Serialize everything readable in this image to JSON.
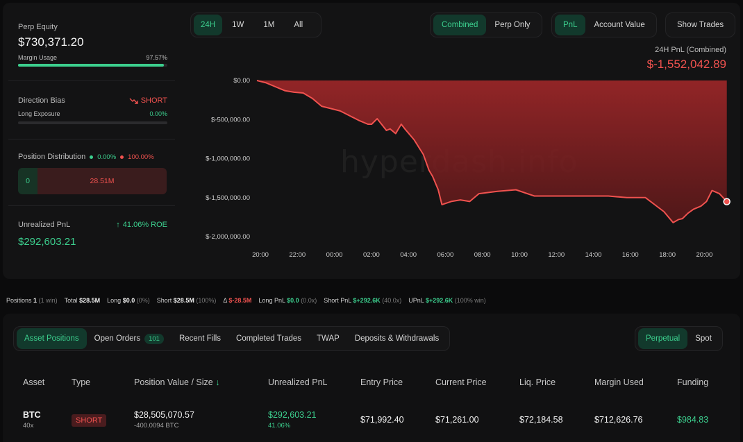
{
  "left": {
    "perp_equity_label": "Perp Equity",
    "perp_equity_value": "$730,371.20",
    "margin_usage_label": "Margin Usage",
    "margin_usage_value": "97.57%",
    "margin_usage_fraction": 0.9757,
    "direction_bias_label": "Direction Bias",
    "direction_bias_value": "SHORT",
    "long_exposure_label": "Long Exposure",
    "long_exposure_value": "0.00%",
    "long_exposure_fraction": 0.0,
    "position_distribution_label": "Position Distribution",
    "dist_long_pct": "0.00%",
    "dist_short_pct": "100.00%",
    "dist_long_value": "0",
    "dist_short_value": "28.51M",
    "unrealized_pnl_label": "Unrealized PnL",
    "roe_value": "41.06% ROE",
    "unrealized_pnl_value": "$292,603.21"
  },
  "timeframes": [
    "24H",
    "1W",
    "1M",
    "All"
  ],
  "timeframe_active": "24H",
  "modes": [
    "Combined",
    "Perp Only"
  ],
  "mode_active": "Combined",
  "metrics": [
    "PnL",
    "Account Value"
  ],
  "metric_active": "PnL",
  "show_trades_label": "Show Trades",
  "pnl_header": {
    "label": "24H PnL (Combined)",
    "value": "$-1,552,042.89"
  },
  "watermark": "hyperdash.info",
  "chart_data": {
    "type": "area",
    "title": "24H PnL (Combined)",
    "xlabel": "",
    "ylabel": "",
    "x_ticks": [
      "20:00",
      "22:00",
      "00:00",
      "02:00",
      "04:00",
      "06:00",
      "08:00",
      "10:00",
      "12:00",
      "14:00",
      "16:00",
      "18:00",
      "20:00"
    ],
    "y_ticks": [
      "$0.00",
      "$-500,000.00",
      "$-1,000,000.00",
      "$-1,500,000.00",
      "$-2,000,000.00"
    ],
    "ylim": [
      -2000000,
      0
    ],
    "xlim_hours": [
      0,
      25.6
    ],
    "series": [
      {
        "color": "#f0524f",
        "x": [
          0,
          0.5,
          1,
          1.5,
          2,
          2.5,
          3,
          3.5,
          4,
          4.5,
          5,
          5.5,
          6,
          6.2,
          6.5,
          6.8,
          7,
          7.2,
          7.5,
          7.8,
          8,
          8.5,
          9,
          9.3,
          9.5,
          9.8,
          10,
          10.5,
          11,
          11.5,
          12,
          13,
          14,
          15,
          16,
          17,
          18,
          19,
          20,
          21,
          22,
          22.5,
          22.8,
          23,
          23.3,
          23.6,
          24,
          24.3,
          24.6,
          25,
          25.4
        ],
        "y": [
          0,
          -30000,
          -80000,
          -130000,
          -150000,
          -160000,
          -230000,
          -330000,
          -360000,
          -390000,
          -450000,
          -510000,
          -560000,
          -560000,
          -490000,
          -580000,
          -640000,
          -620000,
          -680000,
          -560000,
          -620000,
          -760000,
          -950000,
          -1150000,
          -1230000,
          -1400000,
          -1590000,
          -1550000,
          -1530000,
          -1550000,
          -1450000,
          -1420000,
          -1400000,
          -1480000,
          -1480000,
          -1480000,
          -1480000,
          -1480000,
          -1500000,
          -1500000,
          -1680000,
          -1820000,
          -1780000,
          -1770000,
          -1700000,
          -1650000,
          -1610000,
          -1550000,
          -1410000,
          -1450000,
          -1552042.89
        ]
      }
    ]
  },
  "stats": {
    "positions_label": "Positions",
    "positions_value": "1",
    "positions_sub": "(1 win)",
    "total_label": "Total",
    "total_value": "$28.5M",
    "long_label": "Long",
    "long_value": "$0.0",
    "long_sub": "(0%)",
    "short_label": "Short",
    "short_value": "$28.5M",
    "short_sub": "(100%)",
    "delta_label": "Δ",
    "delta_value": "$-28.5M",
    "long_pnl_label": "Long PnL",
    "long_pnl_value": "$0.0",
    "long_pnl_sub": "(0.0x)",
    "short_pnl_label": "Short PnL",
    "short_pnl_value": "$+292.6K",
    "short_pnl_sub": "(40.0x)",
    "upnl_label": "UPnL",
    "upnl_value": "$+292.6K",
    "upnl_sub": "(100% win)"
  },
  "tabs": [
    "Asset Positions",
    "Open Orders",
    "Recent Fills",
    "Completed Trades",
    "TWAP",
    "Deposits & Withdrawals"
  ],
  "tab_active": "Asset Positions",
  "open_orders_count": "101",
  "market_types": [
    "Perpetual",
    "Spot"
  ],
  "market_active": "Perpetual",
  "table": {
    "headers": [
      "Asset",
      "Type",
      "Position Value / Size",
      "Unrealized PnL",
      "Entry Price",
      "Current Price",
      "Liq. Price",
      "Margin Used",
      "Funding"
    ],
    "sort_arrow": "↓",
    "rows": [
      {
        "asset": "BTC",
        "leverage": "40x",
        "type": "SHORT",
        "position_value": "$28,505,070.57",
        "size": "-400.0094 BTC",
        "unrealized_pnl": "$292,603.21",
        "unrealized_pnl_pct": "41.06%",
        "entry_price": "$71,992.40",
        "current_price": "$71,261.00",
        "liq_price": "$72,184.58",
        "margin_used": "$712,626.76",
        "funding": "$984.83"
      }
    ]
  },
  "colors": {
    "accent_green": "#3ccf8e",
    "accent_red": "#f0524f",
    "active_bg": "#12392c",
    "panel_bg": "#131314"
  }
}
